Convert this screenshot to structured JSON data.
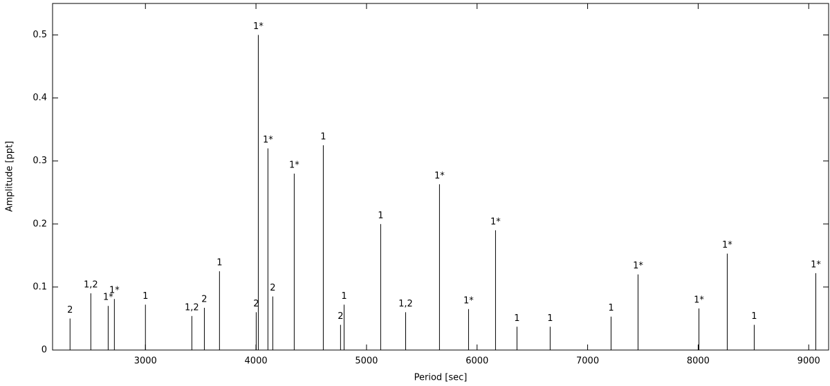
{
  "chart_data": {
    "type": "stem",
    "x_label": "Period [sec]",
    "y_label": "Amplitude [ppt]",
    "xlim": [
      2160,
      9180
    ],
    "ylim": [
      0,
      0.55
    ],
    "xticks": [
      3000,
      4000,
      5000,
      6000,
      7000,
      8000,
      9000
    ],
    "yticks": [
      0,
      0.1,
      0.2,
      0.3,
      0.4,
      0.5
    ],
    "color": "#000000",
    "x": [
      2318,
      2506,
      2663,
      2719,
      3000,
      3420,
      3533,
      3670,
      4002,
      4021,
      4108,
      4152,
      4346,
      4609,
      4765,
      4797,
      5128,
      5354,
      5660,
      5923,
      6167,
      6361,
      6661,
      7212,
      7456,
      8007,
      8263,
      8507,
      9064
    ],
    "values": [
      0.05,
      0.09,
      0.07,
      0.081,
      0.072,
      0.054,
      0.067,
      0.125,
      0.06,
      0.5,
      0.32,
      0.085,
      0.28,
      0.325,
      0.04,
      0.072,
      0.2,
      0.06,
      0.263,
      0.065,
      0.19,
      0.037,
      0.037,
      0.053,
      0.12,
      0.066,
      0.153,
      0.04,
      0.122
    ],
    "labels": [
      "2",
      "1,2",
      "1*",
      "1*",
      "1",
      "1,2",
      "2",
      "1",
      "2",
      "1*",
      "1*",
      "2",
      "1*",
      "1",
      "2",
      "1",
      "1",
      "1,2",
      "1*",
      "1*",
      "1*",
      "1",
      "1",
      "1",
      "1*",
      "1*",
      "1*",
      "1",
      "1*"
    ]
  }
}
